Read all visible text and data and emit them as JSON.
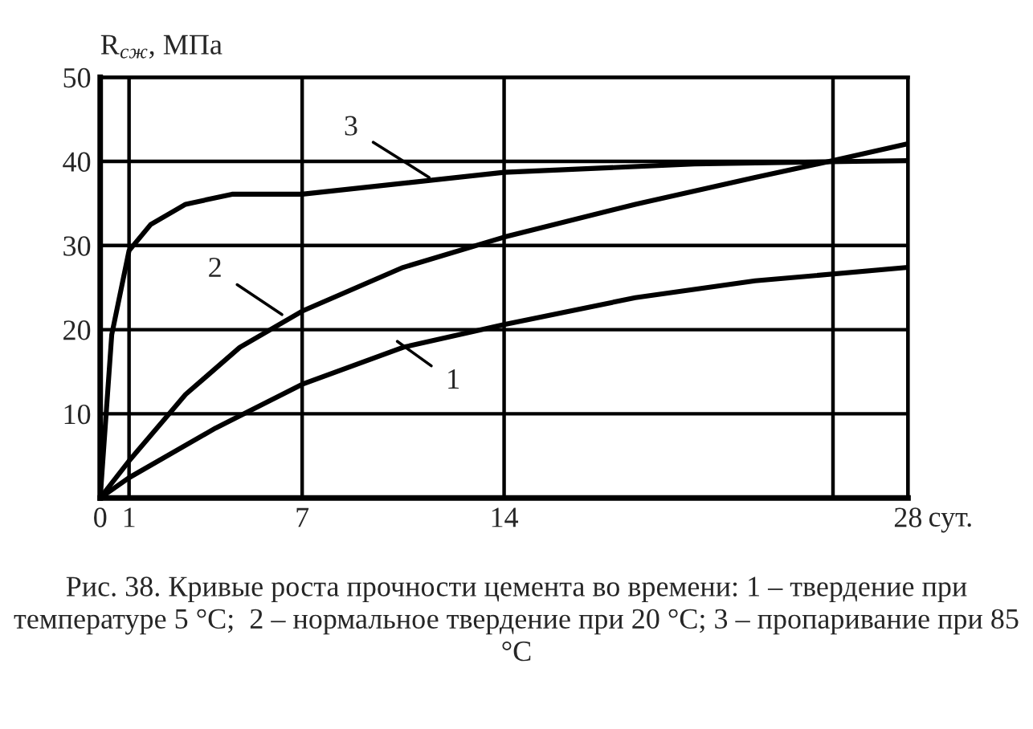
{
  "chart_data": {
    "type": "line",
    "ylabel": "R$_{сж}$, МПа",
    "xlabel": "сут.",
    "xlim": [
      0,
      28
    ],
    "xticks": [
      0,
      1,
      7,
      14,
      {
        "value": 25.4,
        "label": null
      },
      28
    ],
    "ylim": [
      0,
      50
    ],
    "yticks": [
      10,
      20,
      30,
      40,
      50
    ],
    "grid": true,
    "marker": "none",
    "line_style": "solid",
    "legend": false,
    "series": [
      {
        "color": "#000000",
        "x": [
          0,
          1,
          4.0,
          7,
          10.5,
          14,
          18.55,
          22.7,
          28
        ],
        "values": [
          0,
          2.4,
          8.3,
          13.5,
          17.9,
          20.6,
          23.8,
          25.8,
          27.4
        ]
      },
      {
        "color": "#000000",
        "x": [
          0,
          1,
          2.96,
          4.84,
          7,
          10.5,
          14,
          18.55,
          22.7,
          25.4,
          28
        ],
        "values": [
          0,
          4.4,
          12.3,
          17.9,
          22.2,
          27.4,
          31,
          34.9,
          38.1,
          40.1,
          42.1
        ]
      },
      {
        "color": "#000000",
        "x": [
          0,
          0.4,
          1,
          1.75,
          2.96,
          4.57,
          7,
          14,
          20.6,
          28
        ],
        "values": [
          0,
          19.4,
          29.4,
          32.5,
          34.9,
          36.1,
          36.1,
          38.7,
          39.7,
          40.1
        ]
      }
    ],
    "annotations": [
      {
        "text": "1",
        "x": 10.3,
        "y": 18.6
      },
      {
        "text": "2",
        "x": 6.3,
        "y": 21.8
      },
      {
        "text": "3",
        "x": 11.4,
        "y": 38.1
      },
      "Рис. 38. Кривые роста прочности цемента во времени: 1 – твердение при температуре 5 °C;  2 – нормальное твердение при 20 °C; 3 – пропаривание при 85 °C"
    ]
  }
}
